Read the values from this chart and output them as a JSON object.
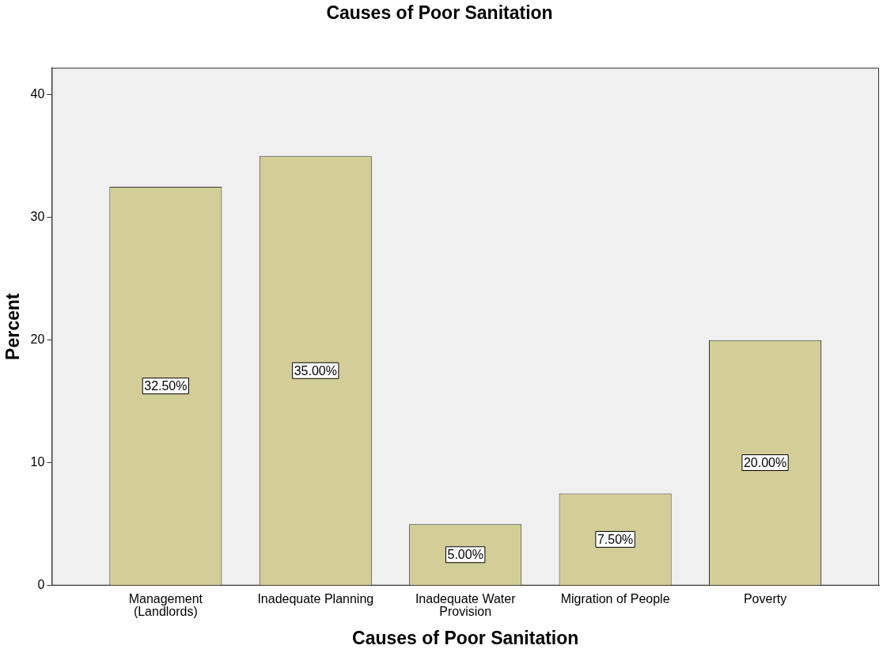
{
  "chart_data": {
    "type": "bar",
    "title": "Causes of Poor Sanitation",
    "xlabel": "Causes of Poor Sanitation",
    "ylabel": "Percent",
    "categories": [
      "Management (Landlords)",
      "Inadequate Planning",
      "Inadequate Water Provision",
      "Migration of People",
      "Poverty"
    ],
    "values": [
      32.5,
      35,
      5,
      7.5,
      20
    ],
    "value_labels": [
      "32.50%",
      "35.00%",
      "5.00%",
      "7.50%",
      "20.00%"
    ],
    "color": "#d3ce97",
    "ylim": [
      0,
      42.2
    ],
    "yticks": [
      0,
      10,
      20,
      30,
      40
    ],
    "grid": false,
    "legend": false
  }
}
